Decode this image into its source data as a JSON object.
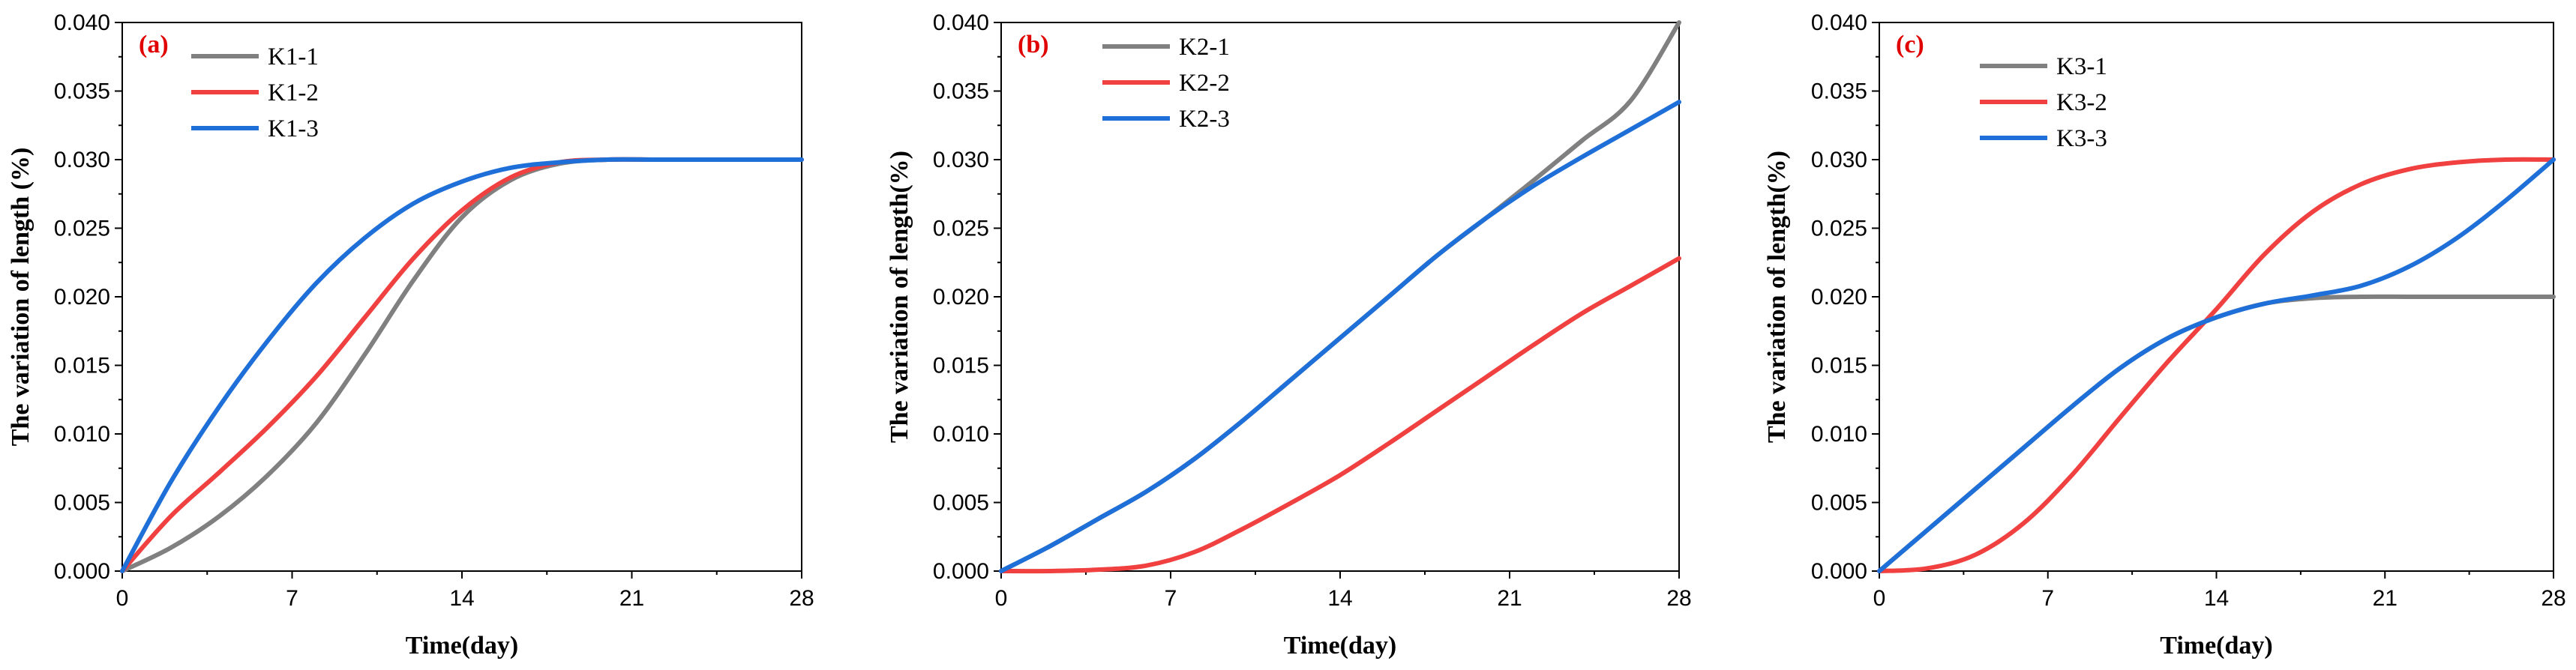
{
  "colors": {
    "gray": "#808080",
    "red": "#f04040",
    "blue": "#1f6fd9",
    "tag": "#e00000"
  },
  "chart_data": [
    {
      "type": "line",
      "panel_label": "(a)",
      "xlabel": "Time(day)",
      "ylabel": "The variation of length (%)",
      "xlim": [
        0,
        28
      ],
      "ylim": [
        0,
        0.04
      ],
      "xticks": [
        0,
        7,
        14,
        21,
        28
      ],
      "xtick_labels": [
        "0",
        "7",
        "14",
        "21",
        "28"
      ],
      "yticks": [
        0,
        0.005,
        0.01,
        0.015,
        0.02,
        0.025,
        0.03,
        0.035,
        0.04
      ],
      "ytick_labels": [
        "0.000",
        "0.005",
        "0.010",
        "0.015",
        "0.020",
        "0.025",
        "0.030",
        "0.035",
        "0.040"
      ],
      "legend_position": "top-left",
      "x": [
        0,
        2,
        4,
        6,
        8,
        10,
        12,
        14,
        16,
        18,
        20,
        22,
        24,
        26,
        28
      ],
      "series": [
        {
          "name": "K1-1",
          "color": "gray",
          "values": [
            0,
            0.0017,
            0.004,
            0.007,
            0.0108,
            0.0158,
            0.0212,
            0.0258,
            0.0285,
            0.0297,
            0.03,
            0.03,
            0.03,
            0.03,
            0.03
          ]
        },
        {
          "name": "K1-2",
          "color": "red",
          "values": [
            0,
            0.004,
            0.0072,
            0.0105,
            0.0142,
            0.0185,
            0.0228,
            0.0263,
            0.0287,
            0.0298,
            0.03,
            0.03,
            0.03,
            0.03,
            0.03
          ]
        },
        {
          "name": "K1-3",
          "color": "blue",
          "values": [
            0,
            0.0065,
            0.012,
            0.0168,
            0.021,
            0.0243,
            0.0268,
            0.0284,
            0.0294,
            0.0298,
            0.03,
            0.03,
            0.03,
            0.03,
            0.03
          ]
        }
      ]
    },
    {
      "type": "line",
      "panel_label": "(b)",
      "xlabel": "Time(day)",
      "ylabel": "The variation of length(%)",
      "xlim": [
        0,
        28
      ],
      "ylim": [
        0,
        0.04
      ],
      "xticks": [
        0,
        7,
        14,
        21,
        28
      ],
      "xtick_labels": [
        "0",
        "7",
        "14",
        "21",
        "28"
      ],
      "yticks": [
        0,
        0.005,
        0.01,
        0.015,
        0.02,
        0.025,
        0.03,
        0.035,
        0.04
      ],
      "ytick_labels": [
        "0.000",
        "0.005",
        "0.010",
        "0.015",
        "0.020",
        "0.025",
        "0.030",
        "0.035",
        "0.040"
      ],
      "legend_position": "top-left",
      "x": [
        0,
        2,
        4,
        6,
        8,
        10,
        12,
        14,
        16,
        18,
        20,
        22,
        24,
        26,
        28
      ],
      "series": [
        {
          "name": "K2-1",
          "color": "gray",
          "values": [
            0,
            0.0018,
            0.0038,
            0.0058,
            0.0082,
            0.011,
            0.014,
            0.017,
            0.02,
            0.023,
            0.0257,
            0.0285,
            0.0314,
            0.0343,
            0.04
          ]
        },
        {
          "name": "K2-2",
          "color": "red",
          "values": [
            0,
            0.0,
            0.0001,
            0.0004,
            0.0014,
            0.0031,
            0.005,
            0.007,
            0.0093,
            0.0117,
            0.0141,
            0.0165,
            0.0188,
            0.0208,
            0.0228
          ]
        },
        {
          "name": "K2-3",
          "color": "blue",
          "values": [
            0,
            0.0018,
            0.0038,
            0.0058,
            0.0082,
            0.011,
            0.014,
            0.017,
            0.02,
            0.023,
            0.0257,
            0.0281,
            0.0302,
            0.0322,
            0.0342
          ]
        }
      ]
    },
    {
      "type": "line",
      "panel_label": "(c)",
      "xlabel": "Time(day)",
      "ylabel": "The variation of length(%)",
      "xlim": [
        0,
        28
      ],
      "ylim": [
        0,
        0.04
      ],
      "xticks": [
        0,
        7,
        14,
        21,
        28
      ],
      "xtick_labels": [
        "0",
        "7",
        "14",
        "21",
        "28"
      ],
      "yticks": [
        0,
        0.005,
        0.01,
        0.015,
        0.02,
        0.025,
        0.03,
        0.035,
        0.04
      ],
      "ytick_labels": [
        "0.000",
        "0.005",
        "0.010",
        "0.015",
        "0.020",
        "0.025",
        "0.030",
        "0.035",
        "0.040"
      ],
      "legend_position": "top-left",
      "x": [
        0,
        2,
        4,
        6,
        8,
        10,
        12,
        14,
        16,
        18,
        20,
        22,
        24,
        26,
        28
      ],
      "series": [
        {
          "name": "K3-1",
          "color": "gray",
          "values": [
            0,
            0.003,
            0.006,
            0.009,
            0.012,
            0.0148,
            0.017,
            0.0185,
            0.0195,
            0.0199,
            0.02,
            0.02,
            0.02,
            0.02,
            0.02
          ]
        },
        {
          "name": "K3-2",
          "color": "red",
          "values": [
            0,
            0.0002,
            0.0012,
            0.0035,
            0.007,
            0.0112,
            0.0153,
            0.0191,
            0.0231,
            0.0262,
            0.0282,
            0.0293,
            0.0298,
            0.03,
            0.03
          ]
        },
        {
          "name": "K3-3",
          "color": "blue",
          "values": [
            0,
            0.003,
            0.006,
            0.009,
            0.012,
            0.0148,
            0.017,
            0.0185,
            0.0195,
            0.0201,
            0.0208,
            0.0222,
            0.0243,
            0.027,
            0.03
          ]
        }
      ]
    }
  ]
}
